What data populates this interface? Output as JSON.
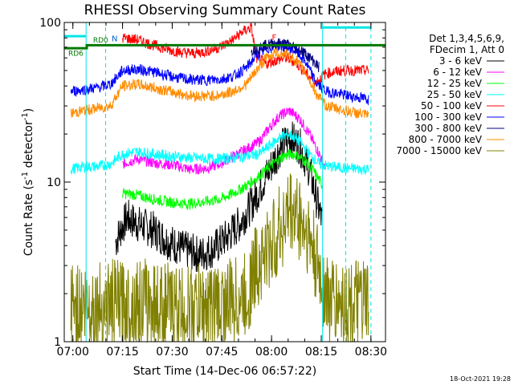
{
  "chart_data": {
    "type": "line",
    "title": "RHESSI Observing Summary Count Rates",
    "xlabel": "Start Time (14-Dec-06 06:57:22)",
    "ylabel_main": "Count Rate (s",
    "ylabel_sup1": "-1",
    "ylabel_mid": " detector",
    "ylabel_sup2": "-1",
    "ylabel_end": ")",
    "y_scale": "log",
    "ylim": [
      1,
      100
    ],
    "y_tick_labels": [
      "1",
      "10",
      "100"
    ],
    "xlim_min": [
      0,
      97
    ],
    "x_tick_labels": [
      "07:00",
      "07:15",
      "07:30",
      "07:45",
      "08:00",
      "08:15",
      "08:30"
    ],
    "x_ticks_min": [
      2.6,
      17.6,
      32.6,
      47.6,
      62.6,
      77.6,
      92.6
    ],
    "legend_header": [
      "Det 1,3,4,5,6,9,",
      "FDecim 1, Att 0"
    ],
    "series": [
      {
        "name": "3 - 6 keV",
        "color": "#000000",
        "points": [
          [
            15.5,
            4.2
          ],
          [
            17,
            5.0
          ],
          [
            19,
            6.0
          ],
          [
            22,
            5.5
          ],
          [
            27,
            5.0
          ],
          [
            31,
            4.3
          ],
          [
            36,
            3.8
          ],
          [
            41,
            3.5
          ],
          [
            45,
            3.8
          ],
          [
            49,
            4.5
          ],
          [
            53,
            5.5
          ],
          [
            57,
            7.5
          ],
          [
            61,
            11
          ],
          [
            65,
            16
          ],
          [
            68,
            19
          ],
          [
            71,
            17
          ],
          [
            74,
            12
          ],
          [
            76,
            8
          ],
          [
            78,
            5.5
          ]
        ]
      },
      {
        "name": "6 - 12 keV",
        "color": "#ff00ff",
        "points": [
          [
            17.6,
            13
          ],
          [
            22,
            14
          ],
          [
            27,
            13.2
          ],
          [
            33,
            12.8
          ],
          [
            38,
            12.0
          ],
          [
            43,
            12.2
          ],
          [
            47,
            13
          ],
          [
            51,
            14.5
          ],
          [
            55,
            16
          ],
          [
            59,
            18
          ],
          [
            62,
            22
          ],
          [
            65,
            26
          ],
          [
            68,
            28
          ],
          [
            71,
            25
          ],
          [
            74,
            20
          ],
          [
            77,
            15
          ],
          [
            79,
            12
          ]
        ]
      },
      {
        "name": "12 - 25 keV",
        "color": "#00ff00",
        "points": [
          [
            17.6,
            8.5
          ],
          [
            22,
            8.3
          ],
          [
            27,
            7.8
          ],
          [
            32,
            7.5
          ],
          [
            37,
            7.3
          ],
          [
            42,
            7.5
          ],
          [
            47,
            7.8
          ],
          [
            51,
            8.5
          ],
          [
            55,
            9.5
          ],
          [
            59,
            11
          ],
          [
            63,
            13
          ],
          [
            66,
            14.5
          ],
          [
            69,
            15
          ],
          [
            72,
            14
          ],
          [
            75,
            12
          ],
          [
            78,
            9.5
          ]
        ]
      },
      {
        "name": "25 - 50 keV",
        "color": "#00ffff",
        "points": [
          [
            2,
            12
          ],
          [
            6,
            12.5
          ],
          [
            10,
            12.5
          ],
          [
            14,
            13
          ],
          [
            17.6,
            15
          ],
          [
            22,
            15.5
          ],
          [
            27,
            15
          ],
          [
            33,
            14.5
          ],
          [
            38,
            14.2
          ],
          [
            43,
            14
          ],
          [
            47,
            14
          ],
          [
            51,
            14.2
          ],
          [
            55,
            14.5
          ],
          [
            59,
            15
          ],
          [
            62,
            17
          ],
          [
            65,
            19
          ],
          [
            68,
            20
          ],
          [
            71,
            18
          ],
          [
            74,
            15
          ],
          [
            77,
            13
          ],
          [
            80,
            12.5
          ],
          [
            86,
            12.2
          ],
          [
            92,
            12
          ]
        ]
      },
      {
        "name": "50 - 100 keV",
        "color": "#ff0000",
        "points": [
          [
            17.6,
            80
          ],
          [
            22,
            78
          ],
          [
            27,
            72
          ],
          [
            31,
            68
          ],
          [
            35,
            65
          ],
          [
            39,
            64
          ],
          [
            43,
            66
          ],
          [
            47,
            70
          ],
          [
            51,
            78
          ],
          [
            54,
            88
          ],
          [
            56.5,
            93
          ],
          [
            58,
            60
          ],
          [
            61,
            55
          ],
          [
            64,
            58
          ],
          [
            67,
            60
          ],
          [
            70,
            56
          ],
          [
            73,
            48
          ],
          [
            76,
            42
          ],
          [
            79,
            48
          ],
          [
            84,
            50
          ],
          [
            92,
            50
          ]
        ]
      },
      {
        "name": "100 - 300 keV",
        "color": "#0000ff",
        "points": [
          [
            2,
            37
          ],
          [
            6,
            38
          ],
          [
            10,
            39
          ],
          [
            14,
            41
          ],
          [
            17.6,
            50
          ],
          [
            22,
            51
          ],
          [
            27,
            49
          ],
          [
            32,
            46
          ],
          [
            37,
            44
          ],
          [
            42,
            43.5
          ],
          [
            47,
            44
          ],
          [
            51,
            46
          ],
          [
            55,
            52
          ],
          [
            58,
            62
          ],
          [
            61,
            68
          ],
          [
            64,
            72
          ],
          [
            67,
            70
          ],
          [
            70,
            66
          ],
          [
            73,
            56
          ],
          [
            76,
            42
          ],
          [
            79,
            37
          ],
          [
            85,
            35
          ],
          [
            92,
            33
          ]
        ]
      },
      {
        "name": "300 - 800 keV",
        "color": "#000080",
        "points": [
          [
            56.5,
            67
          ],
          [
            60,
            71
          ],
          [
            63,
            74
          ],
          [
            66,
            74
          ],
          [
            69,
            71
          ],
          [
            72,
            66
          ],
          [
            75,
            58
          ],
          [
            77,
            52
          ]
        ]
      },
      {
        "name": "800 - 7000 keV",
        "color": "#ff8c00",
        "points": [
          [
            2,
            27
          ],
          [
            6,
            28
          ],
          [
            10,
            29
          ],
          [
            14,
            30
          ],
          [
            17.6,
            40
          ],
          [
            22,
            41
          ],
          [
            27,
            39
          ],
          [
            32,
            37
          ],
          [
            37,
            35
          ],
          [
            42,
            34.5
          ],
          [
            47,
            35
          ],
          [
            51,
            37
          ],
          [
            55,
            41
          ],
          [
            58,
            50
          ],
          [
            61,
            60
          ],
          [
            64,
            65
          ],
          [
            67,
            63
          ],
          [
            70,
            58
          ],
          [
            73,
            48
          ],
          [
            76,
            36
          ],
          [
            79,
            30
          ],
          [
            85,
            28
          ],
          [
            92,
            26
          ]
        ]
      },
      {
        "name": "7000 - 15000 keV",
        "color": "#808000",
        "points": [
          [
            2,
            1.7
          ],
          [
            10,
            1.65
          ],
          [
            14,
            1.75
          ],
          [
            17,
            1.7
          ],
          [
            25,
            1.75
          ],
          [
            35,
            1.6
          ],
          [
            45,
            1.65
          ],
          [
            55,
            1.9
          ],
          [
            58,
            3.0
          ],
          [
            62,
            3.8
          ],
          [
            65,
            5.0
          ],
          [
            68,
            6.5
          ],
          [
            71,
            6.0
          ],
          [
            74,
            4.5
          ],
          [
            77,
            2.6
          ],
          [
            80,
            1.8
          ],
          [
            86,
            1.7
          ],
          [
            92,
            1.7
          ]
        ]
      }
    ],
    "attenuator_labels": [
      "RD6",
      "RD0"
    ],
    "flag_labels": [
      "N",
      "F"
    ],
    "grid": false,
    "legend_placement": "right"
  },
  "timestamp": "18-Oct-2021 19:28",
  "colors": {
    "background": "#ffffff",
    "axis": "#000000",
    "attenuator": "#007800",
    "flag_cyan": "#00e6e6"
  }
}
